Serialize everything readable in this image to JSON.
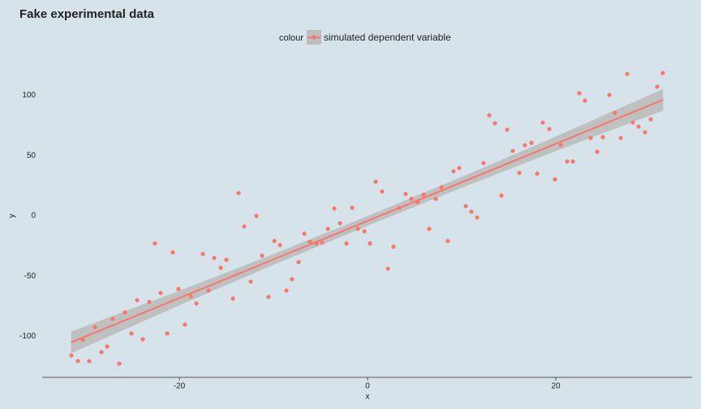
{
  "chart_data": {
    "type": "scatter",
    "title": "Fake experimental data",
    "x_label": "x",
    "y_label": "y",
    "legend_title": "colour",
    "series": [
      {
        "name": "simulated dependent variable",
        "color": "#f8766d",
        "x": [
          -31.47,
          -30.78,
          -30.26,
          -29.57,
          -28.97,
          -28.28,
          -27.67,
          -27.07,
          -26.38,
          -25.78,
          -25.09,
          -24.48,
          -23.88,
          -23.19,
          -22.59,
          -21.98,
          -21.29,
          -20.69,
          -20.09,
          -19.4,
          -18.79,
          -18.19,
          -17.5,
          -16.9,
          -16.29,
          -15.6,
          -15.0,
          -14.31,
          -13.71,
          -13.1,
          -12.41,
          -11.81,
          -11.21,
          -10.52,
          -9.91,
          -9.31,
          -8.62,
          -8.02,
          -7.33,
          -6.72,
          -6.12,
          -5.43,
          -4.83,
          -4.22,
          -3.53,
          -2.93,
          -2.24,
          -1.64,
          -1.03,
          -0.34,
          0.26,
          0.86,
          1.55,
          2.16,
          2.76,
          3.36,
          4.05,
          4.66,
          5.34,
          5.95,
          6.55,
          7.24,
          7.84,
          8.53,
          9.14,
          9.74,
          10.43,
          11.03,
          11.64,
          12.33,
          12.93,
          13.53,
          14.22,
          14.83,
          15.43,
          16.12,
          16.72,
          17.41,
          18.02,
          18.62,
          19.31,
          19.91,
          20.52,
          21.21,
          21.81,
          22.5,
          23.1,
          23.71,
          24.4,
          25.0,
          25.69,
          26.29,
          26.9,
          27.59,
          28.19,
          28.79,
          29.48,
          30.09,
          30.78,
          31.38
        ],
        "values": [
          -115.8,
          -120.5,
          -103.0,
          -120.5,
          -92.3,
          -113.1,
          -108.4,
          -85.5,
          -122.6,
          -80.1,
          -97.6,
          -70.0,
          -102.4,
          -71.4,
          -22.9,
          -64.0,
          -97.6,
          -30.3,
          -60.6,
          -90.2,
          -66.7,
          -72.7,
          -31.6,
          -62.0,
          -35.0,
          -43.1,
          -36.4,
          -68.7,
          18.9,
          -8.8,
          -54.5,
          0,
          -33.0,
          -67.3,
          -20.9,
          -24.2,
          -62.0,
          -52.5,
          -38.4,
          -14.8,
          -21.5,
          -22.9,
          -22.2,
          -10.8,
          6.1,
          -6.1,
          -22.9,
          6.7,
          -10.8,
          -12.8,
          -22.9,
          28.3,
          20.2,
          -43.8,
          -25.6,
          6.7,
          18.2,
          14.1,
          11.4,
          17.5,
          -10.8,
          14.1,
          23.6,
          -20.9,
          37.0,
          39.7,
          8.1,
          3.4,
          -1.3,
          43.8,
          83.5,
          76.8,
          16.8,
          71.4,
          53.9,
          35.7,
          58.6,
          60.6,
          35.0,
          77.4,
          72.1,
          30.3,
          58.6,
          45.1,
          45.1,
          101.7,
          95.6,
          64.6,
          53.2,
          65.3,
          100.3,
          85.5,
          64.6,
          117.8,
          77.4,
          74.1,
          69.4,
          80.1,
          107.1,
          118.5
        ]
      }
    ],
    "fit": {
      "color": "#f8766d",
      "band_color": "#bdbdbd",
      "x": [
        -31.5,
        -20,
        -10,
        0,
        10,
        20,
        31.4
      ],
      "values": [
        -105,
        -68.2,
        -36.2,
        -4.2,
        27.8,
        59.8,
        96.3
      ],
      "lower": [
        -114,
        -74.2,
        -40.7,
        -8.2,
        23.3,
        53.8,
        87.3
      ],
      "upper": [
        -96,
        -62.2,
        -31.7,
        -0.2,
        32.3,
        65.8,
        105.3
      ]
    },
    "xlim": [
      -34.57,
      34.48
    ],
    "ylim": [
      -134,
      135
    ],
    "xticks": [
      -20,
      0,
      20
    ],
    "yticks": [
      -100,
      -50,
      0,
      50,
      100
    ],
    "grid": false
  }
}
